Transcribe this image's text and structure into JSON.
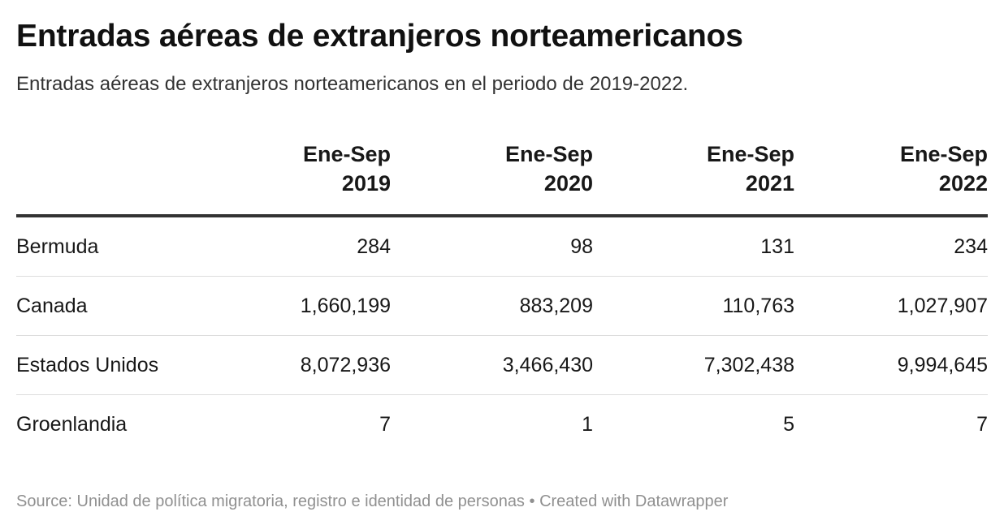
{
  "title": "Entradas aéreas de extranjeros norteamericanos",
  "subtitle": "Entradas aéreas de extranjeros norteamericanos en el periodo de 2019-2022.",
  "chart_data": {
    "type": "table",
    "columns": [
      {
        "line1": "",
        "line2": ""
      },
      {
        "line1": "Ene-Sep",
        "line2": "2019"
      },
      {
        "line1": "Ene-Sep",
        "line2": "2020"
      },
      {
        "line1": "Ene-Sep",
        "line2": "2021"
      },
      {
        "line1": "Ene-Sep",
        "line2": "2022"
      }
    ],
    "rows": [
      {
        "label": "Bermuda",
        "values": [
          "284",
          "98",
          "131",
          "234"
        ]
      },
      {
        "label": "Canada",
        "values": [
          "1,660,199",
          "883,209",
          "110,763",
          "1,027,907"
        ]
      },
      {
        "label": "Estados Unidos",
        "values": [
          "8,072,936",
          "3,466,430",
          "7,302,438",
          "9,994,645"
        ]
      },
      {
        "label": "Groenlandia",
        "values": [
          "7",
          "1",
          "5",
          "7"
        ]
      }
    ]
  },
  "footer": {
    "source_label": "Source:",
    "source": "Unidad de política migratoria, registro e identidad de personas",
    "separator": "•",
    "credit": "Created with Datawrapper"
  }
}
